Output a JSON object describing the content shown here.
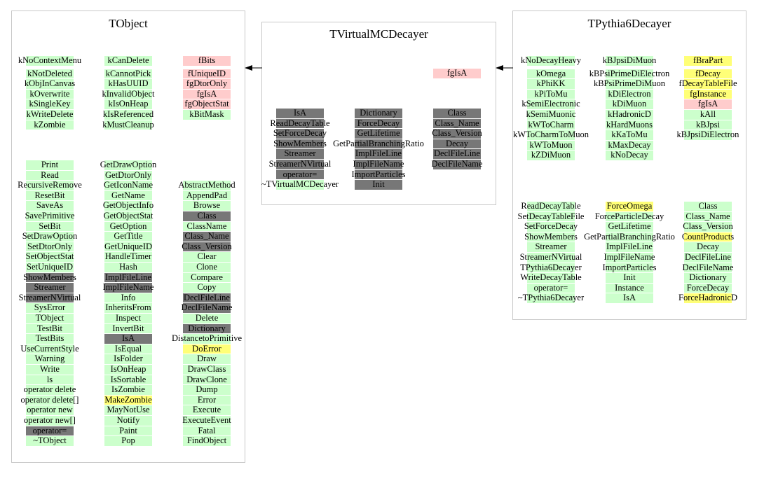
{
  "colors": {
    "g": "#ccffcc",
    "p": "#ffcccc",
    "y": "#ffff77",
    "d": "#777777"
  },
  "classes": [
    {
      "id": "tobject",
      "title": "TObject",
      "top": [
        [
          [
            "kNoContextMenu",
            "g"
          ],
          [
            "kNotDeleted",
            "g"
          ],
          [
            "kObjInCanvas",
            "g"
          ],
          [
            "kOverwrite",
            "g"
          ],
          [
            "kSingleKey",
            "g"
          ],
          [
            "kWriteDelete",
            "g"
          ],
          [
            "kZombie",
            "g"
          ]
        ],
        [
          [
            "kCanDelete",
            "g"
          ],
          [
            "kCannotPick",
            "g"
          ],
          [
            "kHasUUID",
            "g"
          ],
          [
            "kInvalidObject",
            "g"
          ],
          [
            "kIsOnHeap",
            "g"
          ],
          [
            "kIsReferenced",
            "g"
          ],
          [
            "kMustCleanup",
            "g"
          ]
        ],
        [
          [
            "fBits",
            "p"
          ],
          [
            "fUniqueID",
            "p"
          ],
          [
            "fgDtorOnly",
            "p"
          ],
          [
            "fgIsA",
            "p"
          ],
          [
            "fgObjectStat",
            "p"
          ],
          [
            "kBitMask",
            "g"
          ]
        ]
      ],
      "methods": [
        [
          [
            "Print",
            "g"
          ],
          [
            "Read",
            "g"
          ],
          [
            "RecursiveRemove",
            "g"
          ],
          [
            "ResetBit",
            "g"
          ],
          [
            "SaveAs",
            "g"
          ],
          [
            "SavePrimitive",
            "g"
          ],
          [
            "SetBit",
            "g"
          ],
          [
            "SetDrawOption",
            "g"
          ],
          [
            "SetDtorOnly",
            "g"
          ],
          [
            "SetObjectStat",
            "g"
          ],
          [
            "SetUniqueID",
            "g"
          ],
          [
            "ShowMembers",
            "d"
          ],
          [
            "Streamer",
            "d"
          ],
          [
            "StreamerNVirtual",
            "d"
          ],
          [
            "SysError",
            "g"
          ],
          [
            "TObject",
            "g"
          ],
          [
            "TestBit",
            "g"
          ],
          [
            "TestBits",
            "g"
          ],
          [
            "UseCurrentStyle",
            "g"
          ],
          [
            "Warning",
            "g"
          ],
          [
            "Write",
            "g"
          ],
          [
            "ls",
            "g"
          ],
          [
            "operator delete",
            "g"
          ],
          [
            "operator delete[]",
            "g"
          ],
          [
            "operator new",
            "g"
          ],
          [
            "operator new[]",
            "g"
          ],
          [
            "operator=",
            "d"
          ],
          [
            "~TObject",
            "g"
          ]
        ],
        [
          [
            "GetDrawOption",
            "g"
          ],
          [
            "GetDtorOnly",
            "g"
          ],
          [
            "GetIconName",
            "g"
          ],
          [
            "GetName",
            "g"
          ],
          [
            "GetObjectInfo",
            "g"
          ],
          [
            "GetObjectStat",
            "g"
          ],
          [
            "GetOption",
            "g"
          ],
          [
            "GetTitle",
            "g"
          ],
          [
            "GetUniqueID",
            "g"
          ],
          [
            "HandleTimer",
            "g"
          ],
          [
            "Hash",
            "g"
          ],
          [
            "ImplFileLine",
            "d"
          ],
          [
            "ImplFileName",
            "d"
          ],
          [
            "Info",
            "g"
          ],
          [
            "InheritsFrom",
            "g"
          ],
          [
            "Inspect",
            "g"
          ],
          [
            "InvertBit",
            "g"
          ],
          [
            "IsA",
            "d"
          ],
          [
            "IsEqual",
            "g"
          ],
          [
            "IsFolder",
            "g"
          ],
          [
            "IsOnHeap",
            "g"
          ],
          [
            "IsSortable",
            "g"
          ],
          [
            "IsZombie",
            "g"
          ],
          [
            "MakeZombie",
            "y"
          ],
          [
            "MayNotUse",
            "g"
          ],
          [
            "Notify",
            "g"
          ],
          [
            "Paint",
            "g"
          ],
          [
            "Pop",
            "g"
          ]
        ],
        [
          [
            "AbstractMethod",
            "g"
          ],
          [
            "AppendPad",
            "g"
          ],
          [
            "Browse",
            "g"
          ],
          [
            "Class",
            "d"
          ],
          [
            "ClassName",
            "g"
          ],
          [
            "Class_Name",
            "d"
          ],
          [
            "Class_Version",
            "d"
          ],
          [
            "Clear",
            "g"
          ],
          [
            "Clone",
            "g"
          ],
          [
            "Compare",
            "g"
          ],
          [
            "Copy",
            "g"
          ],
          [
            "DeclFileLine",
            "d"
          ],
          [
            "DeclFileName",
            "d"
          ],
          [
            "Delete",
            "g"
          ],
          [
            "Dictionary",
            "d"
          ],
          [
            "DistancetoPrimitive",
            "g"
          ],
          [
            "DoError",
            "y"
          ],
          [
            "Draw",
            "g"
          ],
          [
            "DrawClass",
            "g"
          ],
          [
            "DrawClone",
            "g"
          ],
          [
            "Dump",
            "g"
          ],
          [
            "Error",
            "g"
          ],
          [
            "Execute",
            "g"
          ],
          [
            "ExecuteEvent",
            "g"
          ],
          [
            "Fatal",
            "g"
          ],
          [
            "FindObject",
            "g"
          ]
        ]
      ]
    },
    {
      "id": "tvirtualmcdecayer",
      "title": "TVirtualMCDecayer",
      "top": [
        [],
        [],
        [
          [
            "fgIsA",
            "p"
          ]
        ]
      ],
      "methods": [
        [
          [
            "IsA",
            "d"
          ],
          [
            "ReadDecayTable",
            "d"
          ],
          [
            "SetForceDecay",
            "d"
          ],
          [
            "ShowMembers",
            "d"
          ],
          [
            "Streamer",
            "d"
          ],
          [
            "StreamerNVirtual",
            "d"
          ],
          [
            "operator=",
            "d"
          ],
          [
            "~TVirtualMCDecayer",
            "g"
          ]
        ],
        [
          [
            "Dictionary",
            "d"
          ],
          [
            "ForceDecay",
            "d"
          ],
          [
            "GetLifetime",
            "d"
          ],
          [
            "GetPartialBranchingRatio",
            "d"
          ],
          [
            "ImplFileLine",
            "d"
          ],
          [
            "ImplFileName",
            "d"
          ],
          [
            "ImportParticles",
            "d"
          ],
          [
            "Init",
            "d"
          ]
        ],
        [
          [
            "Class",
            "d"
          ],
          [
            "Class_Name",
            "d"
          ],
          [
            "Class_Version",
            "d"
          ],
          [
            "Decay",
            "d"
          ],
          [
            "DeclFileLine",
            "d"
          ],
          [
            "DeclFileName",
            "d"
          ]
        ]
      ]
    },
    {
      "id": "tpythia6decayer",
      "title": "TPythia6Decayer",
      "top": [
        [
          [
            "kNoDecayHeavy",
            "g"
          ],
          [
            "kOmega",
            "g"
          ],
          [
            "kPhiKK",
            "g"
          ],
          [
            "kPiToMu",
            "g"
          ],
          [
            "kSemiElectronic",
            "g"
          ],
          [
            "kSemiMuonic",
            "g"
          ],
          [
            "kWToCharm",
            "g"
          ],
          [
            "kWToCharmToMuon",
            "g"
          ],
          [
            "kWToMuon",
            "g"
          ],
          [
            "kZDiMuon",
            "g"
          ]
        ],
        [
          [
            "kBJpsiDiMuon",
            "g"
          ],
          [
            "kBPsiPrimeDiElectron",
            "g"
          ],
          [
            "kBPsiPrimeDiMuon",
            "g"
          ],
          [
            "kDiElectron",
            "g"
          ],
          [
            "kDiMuon",
            "g"
          ],
          [
            "kHadronicD",
            "g"
          ],
          [
            "kHardMuons",
            "g"
          ],
          [
            "kKaToMu",
            "g"
          ],
          [
            "kMaxDecay",
            "g"
          ],
          [
            "kNoDecay",
            "g"
          ]
        ],
        [
          [
            "fBraPart",
            "y"
          ],
          [
            "fDecay",
            "y"
          ],
          [
            "fDecayTableFile",
            "y"
          ],
          [
            "fgInstance",
            "y"
          ],
          [
            "fgIsA",
            "p"
          ],
          [
            "kAll",
            "g"
          ],
          [
            "kBJpsi",
            "g"
          ],
          [
            "kBJpsiDiElectron",
            "g"
          ]
        ]
      ],
      "methods": [
        [
          [
            "ReadDecayTable",
            "g"
          ],
          [
            "SetDecayTableFile",
            "g"
          ],
          [
            "SetForceDecay",
            "g"
          ],
          [
            "ShowMembers",
            "g"
          ],
          [
            "Streamer",
            "g"
          ],
          [
            "StreamerNVirtual",
            "g"
          ],
          [
            "TPythia6Decayer",
            "g"
          ],
          [
            "WriteDecayTable",
            "g"
          ],
          [
            "operator=",
            "g"
          ],
          [
            "~TPythia6Decayer",
            "g"
          ]
        ],
        [
          [
            "ForceOmega",
            "y"
          ],
          [
            "ForceParticleDecay",
            "g"
          ],
          [
            "GetLifetime",
            "g"
          ],
          [
            "GetPartialBranchingRatio",
            "g"
          ],
          [
            "ImplFileLine",
            "g"
          ],
          [
            "ImplFileName",
            "g"
          ],
          [
            "ImportParticles",
            "g"
          ],
          [
            "Init",
            "g"
          ],
          [
            "Instance",
            "g"
          ],
          [
            "IsA",
            "g"
          ]
        ],
        [
          [
            "Class",
            "g"
          ],
          [
            "Class_Name",
            "g"
          ],
          [
            "Class_Version",
            "g"
          ],
          [
            "CountProducts",
            "y"
          ],
          [
            "Decay",
            "g"
          ],
          [
            "DeclFileLine",
            "g"
          ],
          [
            "DeclFileName",
            "g"
          ],
          [
            "Dictionary",
            "g"
          ],
          [
            "ForceDecay",
            "g"
          ],
          [
            "ForceHadronicD",
            "y"
          ]
        ]
      ]
    }
  ],
  "inheritance": [
    {
      "from": "TVirtualMCDecayer",
      "to": "TObject"
    },
    {
      "from": "TPythia6Decayer",
      "to": "TVirtualMCDecayer"
    }
  ]
}
